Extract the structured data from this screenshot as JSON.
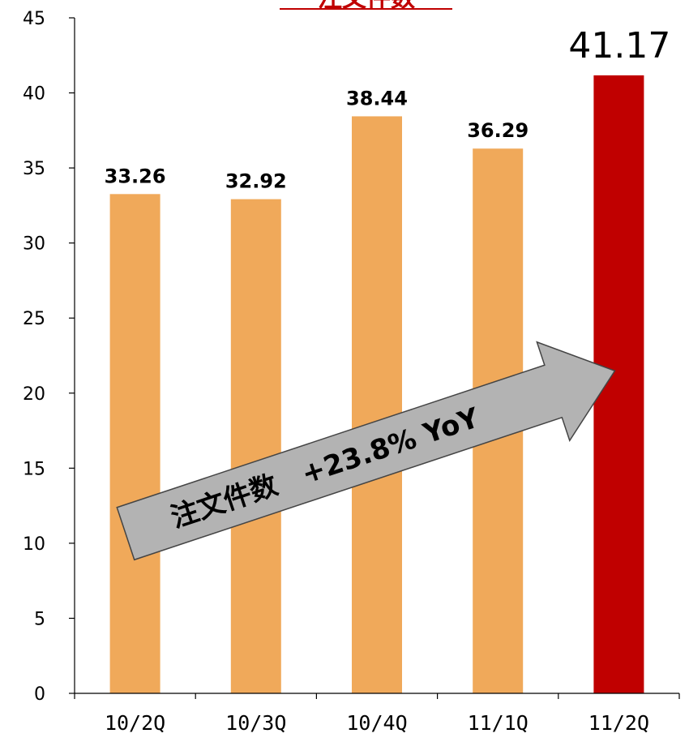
{
  "chart_data": {
    "type": "bar",
    "title": "注文件数",
    "categories": [
      "10/2Q",
      "10/3Q",
      "10/4Q",
      "11/1Q",
      "11/2Q"
    ],
    "values": [
      33.26,
      32.92,
      38.44,
      36.29,
      41.17
    ],
    "value_labels": [
      "33.26",
      "32.92",
      "38.44",
      "36.29",
      "41.17"
    ],
    "ylim": [
      0,
      45
    ],
    "yticks": [
      0,
      5,
      10,
      15,
      20,
      25,
      30,
      35,
      40,
      45
    ],
    "grid": false,
    "legend": "none",
    "colors": {
      "bar": "#F0A95A",
      "highlight_bar": "#C00000",
      "title": "#C00000",
      "arrow": "#B3B3B3"
    },
    "highlight_index": 4,
    "annotation": "注文件数　+23.8% YoY"
  }
}
